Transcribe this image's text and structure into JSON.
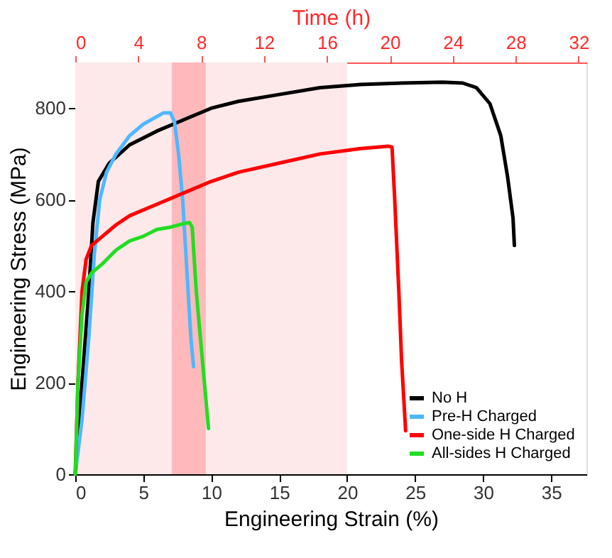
{
  "chart_data": {
    "type": "line",
    "xlabel": "Engineering Strain (%)",
    "ylabel": "Engineering Stress (MPa)",
    "x2label": "Time (h)",
    "xlim": [
      0,
      37.6
    ],
    "xticks": [
      0,
      5,
      10,
      15,
      20,
      25,
      30,
      35
    ],
    "ylim": [
      0,
      900
    ],
    "yticks": [
      0,
      200,
      400,
      600,
      800
    ],
    "x2lim": [
      0,
      32.5
    ],
    "x2ticks": [
      0,
      4,
      8,
      12,
      16,
      20,
      24,
      28,
      32
    ],
    "grid": false,
    "legend": "bottom right",
    "marker": "none",
    "line_style": "solid",
    "bands": [
      {
        "axis": "x",
        "from": 0,
        "to": 20,
        "color": "#fde9ea"
      },
      {
        "axis": "x",
        "from": 7.1,
        "to": 9.6,
        "color": "#ffb9bb"
      }
    ],
    "series": [
      {
        "name": "No H",
        "color": "#000000",
        "x": [
          0,
          0.5,
          1,
          1.3,
          1.7,
          2.5,
          4,
          6,
          8,
          10,
          12,
          15,
          18,
          21,
          24,
          27,
          28.5,
          29.5,
          30.5,
          31.3,
          31.8,
          32.2,
          32.3
        ],
        "values": [
          0,
          200,
          400,
          550,
          640,
          680,
          720,
          750,
          775,
          800,
          815,
          830,
          845,
          852,
          855,
          857,
          855,
          845,
          810,
          740,
          650,
          560,
          500
        ]
      },
      {
        "name": "Pre-H Charged",
        "color": "#4db8ff",
        "x": [
          0,
          0.5,
          1,
          1.4,
          1.8,
          2.3,
          3,
          4,
          5,
          6.5,
          7,
          7.3,
          7.6,
          7.9,
          8.1,
          8.3,
          8.5,
          8.7
        ],
        "values": [
          0,
          120,
          300,
          480,
          600,
          660,
          700,
          740,
          765,
          790,
          790,
          770,
          700,
          600,
          500,
          400,
          300,
          235
        ]
      },
      {
        "name": "One-side H Charged",
        "color": "#ff0000",
        "x": [
          0,
          0.2,
          0.5,
          0.8,
          1.2,
          2,
          3,
          4,
          6,
          8,
          10,
          12,
          15,
          18,
          21,
          23,
          23.3,
          23.5,
          23.8,
          24,
          24.3
        ],
        "values": [
          0,
          200,
          400,
          470,
          500,
          520,
          545,
          565,
          590,
          615,
          640,
          660,
          680,
          700,
          712,
          717,
          715,
          600,
          400,
          250,
          95
        ]
      },
      {
        "name": "All-sides H Charged",
        "color": "#22dd22",
        "x": [
          0,
          0.2,
          0.5,
          0.8,
          1.2,
          2,
          3,
          4,
          5,
          6,
          7,
          8,
          8.4,
          8.6,
          8.9,
          9.2,
          9.5,
          9.8
        ],
        "values": [
          0,
          200,
          350,
          420,
          440,
          460,
          490,
          510,
          520,
          535,
          540,
          548,
          550,
          540,
          400,
          300,
          200,
          100
        ]
      }
    ]
  }
}
